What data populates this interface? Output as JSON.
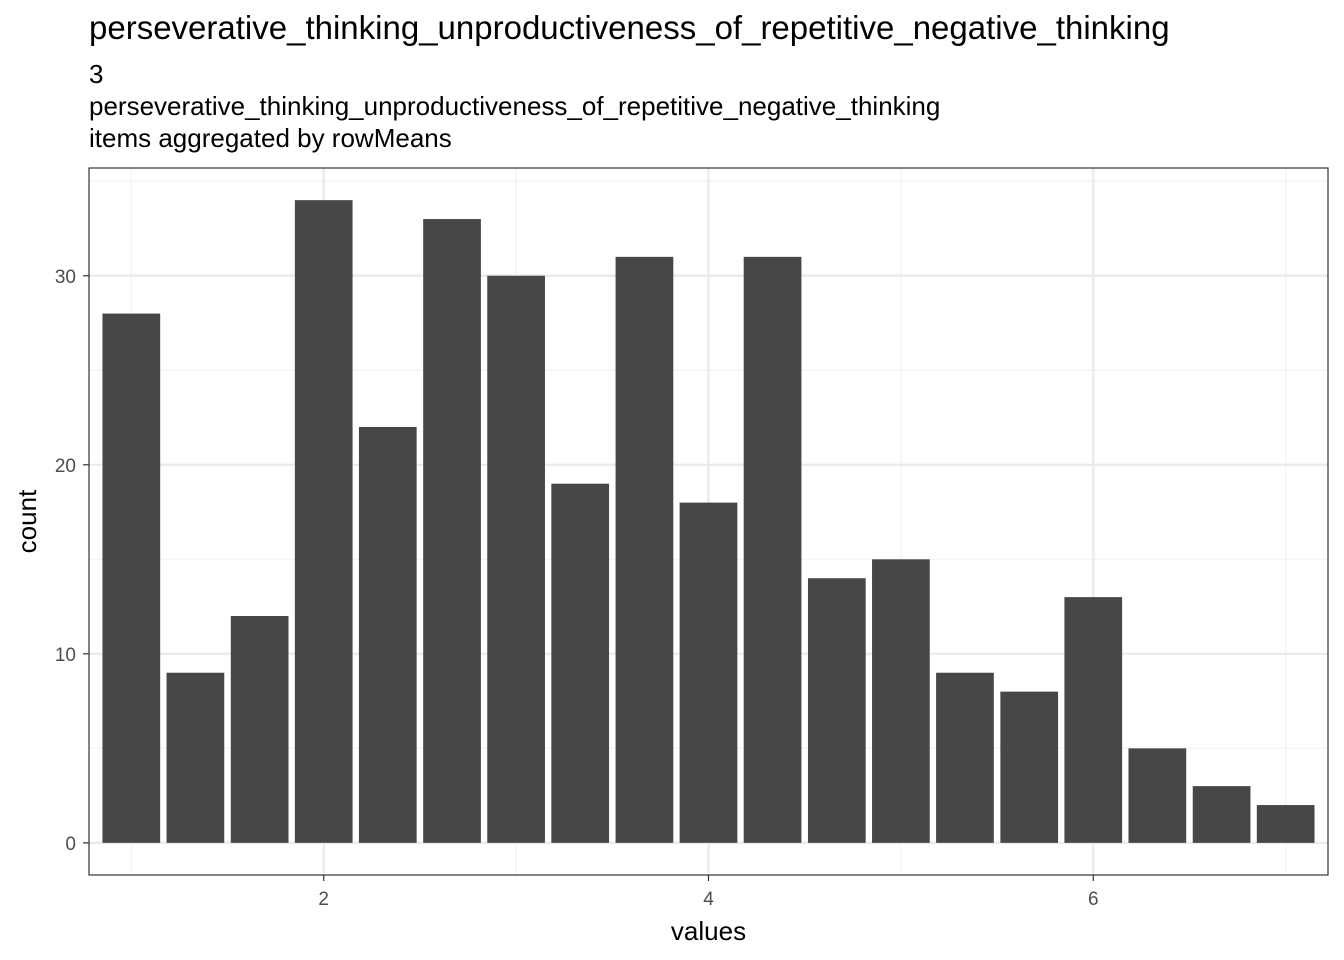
{
  "title": "perseverative_thinking_unproductiveness_of_repetitive_negative_thinking",
  "subtitle_lines": [
    "3",
    "perseverative_thinking_unproductiveness_of_repetitive_negative_thinking",
    "items aggregated by rowMeans"
  ],
  "chart_data": {
    "type": "bar",
    "title": "perseverative_thinking_unproductiveness_of_repetitive_negative_thinking",
    "subtitle": "3 perseverative_thinking_unproductiveness_of_repetitive_negative_thinking items aggregated by rowMeans",
    "xlabel": "values",
    "ylabel": "count",
    "x": [
      1.0,
      1.333,
      1.667,
      2.0,
      2.333,
      2.667,
      3.0,
      3.333,
      3.667,
      4.0,
      4.333,
      4.667,
      5.0,
      5.333,
      5.667,
      6.0,
      6.333,
      6.667,
      7.0
    ],
    "values": [
      28,
      9,
      12,
      34,
      22,
      33,
      30,
      19,
      31,
      18,
      31,
      14,
      15,
      9,
      8,
      13,
      5,
      3,
      2
    ],
    "bar_width": 0.3,
    "xlim": [
      0.78,
      7.22
    ],
    "ylim": [
      -1.7,
      35.7
    ],
    "x_ticks": [
      2,
      4,
      6
    ],
    "x_tick_labels": [
      "2",
      "4",
      "6"
    ],
    "y_ticks": [
      0,
      10,
      20,
      30
    ],
    "y_tick_labels": [
      "0",
      "10",
      "20",
      "30"
    ],
    "grid": true,
    "colors": {
      "bar": "#474747",
      "grid_major": "#ebebeb",
      "grid_minor": "#f2f2f2",
      "border": "#333333"
    }
  }
}
